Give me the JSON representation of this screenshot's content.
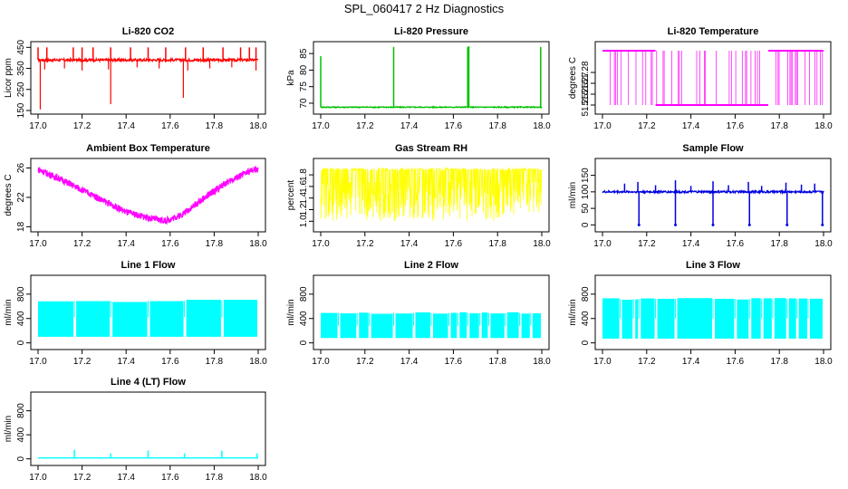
{
  "title": "SPL_060417  2 Hz Diagnostics",
  "chart_data": [
    {
      "type": "line",
      "title": "Li-820 CO2",
      "ylabel": "Licor ppm",
      "color": "#ff0000",
      "xlim": [
        17.0,
        18.0
      ],
      "ylim": [
        150,
        460
      ],
      "xticks": [
        "17.0",
        "17.2",
        "17.4",
        "17.6",
        "17.8",
        "18.0"
      ],
      "yticks": [
        "150",
        "250",
        "350",
        "450"
      ],
      "baseline": 390,
      "noise": 6,
      "spikes_up": [
        [
          17.0,
          450
        ],
        [
          17.04,
          450
        ],
        [
          17.16,
          450
        ],
        [
          17.2,
          450
        ],
        [
          17.25,
          450
        ],
        [
          17.33,
          450
        ],
        [
          17.42,
          450
        ],
        [
          17.5,
          450
        ],
        [
          17.58,
          450
        ],
        [
          17.67,
          450
        ],
        [
          17.75,
          450
        ],
        [
          17.84,
          450
        ],
        [
          17.92,
          450
        ],
        [
          17.96,
          450
        ],
        [
          17.99,
          450
        ]
      ],
      "spikes_down": [
        [
          17.01,
          155
        ],
        [
          17.03,
          345
        ],
        [
          17.12,
          350
        ],
        [
          17.2,
          340
        ],
        [
          17.32,
          345
        ],
        [
          17.33,
          180
        ],
        [
          17.45,
          355
        ],
        [
          17.55,
          350
        ],
        [
          17.66,
          210
        ],
        [
          17.68,
          340
        ],
        [
          17.78,
          350
        ],
        [
          17.88,
          355
        ],
        [
          17.99,
          340
        ]
      ]
    },
    {
      "type": "line",
      "title": "Li-820 Pressure",
      "ylabel": "kPa",
      "color": "#00c000",
      "xlim": [
        17.0,
        18.0
      ],
      "ylim": [
        67.8,
        87.5
      ],
      "xticks": [
        "17.0",
        "17.2",
        "17.4",
        "17.6",
        "17.8",
        "18.0"
      ],
      "yticks": [
        "70",
        "75",
        "80",
        "85"
      ],
      "baseline": 68.8,
      "noise": 0.15,
      "spikes_up": [
        [
          17.0,
          84.2
        ],
        [
          17.33,
          87.0
        ],
        [
          17.665,
          87.0
        ],
        [
          17.67,
          87.2
        ],
        [
          17.995,
          87.0
        ]
      ],
      "spikes_down": []
    },
    {
      "type": "step",
      "title": "Li-820 Temperature",
      "ylabel": "degrees C",
      "color": "#ff00ff",
      "xlim": [
        17.0,
        18.0
      ],
      "ylim": [
        51.245,
        51.305
      ],
      "xticks": [
        "17.0",
        "17.2",
        "17.4",
        "17.6",
        "17.8",
        "18.0"
      ],
      "yticks": [
        "51.25",
        "51.26",
        "51.27",
        "51.28"
      ],
      "high": 51.3,
      "low": 51.25,
      "mid": 51.275,
      "segments": [
        [
          17.0,
          17.24,
          "high"
        ],
        [
          17.24,
          17.75,
          "low"
        ],
        [
          17.75,
          18.0,
          "high"
        ]
      ]
    },
    {
      "type": "line",
      "title": "Ambient Box Temperature",
      "ylabel": "degrees C",
      "color": "#ff00ff",
      "xlim": [
        17.0,
        18.0
      ],
      "ylim": [
        17.8,
        26.8
      ],
      "xticks": [
        "17.0",
        "17.2",
        "17.4",
        "17.6",
        "17.8",
        "18.0"
      ],
      "yticks": [
        "18",
        "22",
        "26"
      ],
      "curve": [
        [
          17.0,
          25.8
        ],
        [
          17.1,
          24.5
        ],
        [
          17.2,
          23.0
        ],
        [
          17.3,
          21.5
        ],
        [
          17.4,
          20.0
        ],
        [
          17.5,
          19.2
        ],
        [
          17.58,
          18.8
        ],
        [
          17.65,
          19.6
        ],
        [
          17.75,
          21.8
        ],
        [
          17.85,
          23.9
        ],
        [
          17.95,
          25.4
        ],
        [
          18.0,
          25.9
        ]
      ],
      "noise": 0.45
    },
    {
      "type": "line",
      "title": "Gas Stream RH",
      "ylabel": "percent",
      "color": "#ffff00",
      "xlim": [
        17.0,
        18.0
      ],
      "ylim": [
        0.88,
        2.02
      ],
      "xticks": [
        "17.0",
        "17.2",
        "17.4",
        "17.6",
        "17.8",
        "18.0"
      ],
      "yticks": [
        "1.0",
        "1.2",
        "1.4",
        "1.6",
        "1.8"
      ],
      "upper": 1.92,
      "lower": 1.0,
      "typical": 1.55
    },
    {
      "type": "line",
      "title": "Sample Flow",
      "ylabel": "ml/min",
      "color": "#0000e0",
      "xlim": [
        17.0,
        18.0
      ],
      "ylim": [
        -10,
        190
      ],
      "xticks": [
        "17.0",
        "17.2",
        "17.4",
        "17.6",
        "17.8",
        "18.0"
      ],
      "yticks": [
        "0",
        "50",
        "100",
        "150"
      ],
      "baseline": 100,
      "noise": 3,
      "dips": [
        17.165,
        17.33,
        17.5,
        17.665,
        17.835,
        17.995
      ],
      "spikes_up": [
        [
          17.1,
          125
        ],
        [
          17.16,
          130
        ],
        [
          17.24,
          120
        ],
        [
          17.33,
          135
        ],
        [
          17.4,
          118
        ],
        [
          17.5,
          132
        ],
        [
          17.57,
          120
        ],
        [
          17.66,
          130
        ],
        [
          17.72,
          118
        ],
        [
          17.83,
          128
        ],
        [
          17.9,
          122
        ],
        [
          17.96,
          125
        ]
      ]
    },
    {
      "type": "area",
      "title": "Line 1 Flow",
      "ylabel": "ml/min",
      "color": "#00ffff",
      "xlim": [
        17.0,
        18.0
      ],
      "ylim": [
        -50,
        1050
      ],
      "xticks": [
        "17.0",
        "17.2",
        "17.4",
        "17.6",
        "17.8",
        "18.0"
      ],
      "yticks": [
        "0",
        "400",
        "800"
      ],
      "upper": 690,
      "lower": 100,
      "gaps": [
        17.165,
        17.33,
        17.5,
        17.665,
        17.835
      ],
      "gap_low": 420
    },
    {
      "type": "area",
      "title": "Line 2 Flow",
      "ylabel": "ml/min",
      "color": "#00ffff",
      "xlim": [
        17.0,
        18.0
      ],
      "ylim": [
        -50,
        1050
      ],
      "xticks": [
        "17.0",
        "17.2",
        "17.4",
        "17.6",
        "17.8",
        "18.0"
      ],
      "yticks": [
        "0",
        "400",
        "800"
      ],
      "upper": 490,
      "lower": 80,
      "gaps": [
        17.08,
        17.165,
        17.22,
        17.33,
        17.42,
        17.5,
        17.58,
        17.62,
        17.665,
        17.72,
        17.76,
        17.835,
        17.9,
        17.95
      ],
      "gap_low": 280
    },
    {
      "type": "area",
      "title": "Line 3 Flow",
      "ylabel": "ml/min",
      "color": "#00ffff",
      "xlim": [
        17.0,
        18.0
      ],
      "ylim": [
        -50,
        1050
      ],
      "xticks": [
        "17.0",
        "17.2",
        "17.4",
        "17.6",
        "17.8",
        "18.0"
      ],
      "yticks": [
        "0",
        "400",
        "800"
      ],
      "upper": 720,
      "lower": 70,
      "gaps": [
        17.08,
        17.14,
        17.165,
        17.24,
        17.33,
        17.5,
        17.6,
        17.665,
        17.72,
        17.77,
        17.835,
        17.88,
        17.93
      ],
      "gap_low": 400
    },
    {
      "type": "line",
      "title": "Line 4 (LT) Flow",
      "ylabel": "ml/min",
      "color": "#00ffff",
      "xlim": [
        17.0,
        18.0
      ],
      "ylim": [
        -50,
        1050
      ],
      "xticks": [
        "17.0",
        "17.2",
        "17.4",
        "17.6",
        "17.8",
        "18.0"
      ],
      "yticks": [
        "0",
        "400",
        "800"
      ],
      "baseline": 15,
      "spikes_up": [
        [
          17.165,
          150
        ],
        [
          17.33,
          90
        ],
        [
          17.5,
          140
        ],
        [
          17.665,
          90
        ],
        [
          17.835,
          135
        ],
        [
          17.995,
          90
        ]
      ]
    }
  ]
}
